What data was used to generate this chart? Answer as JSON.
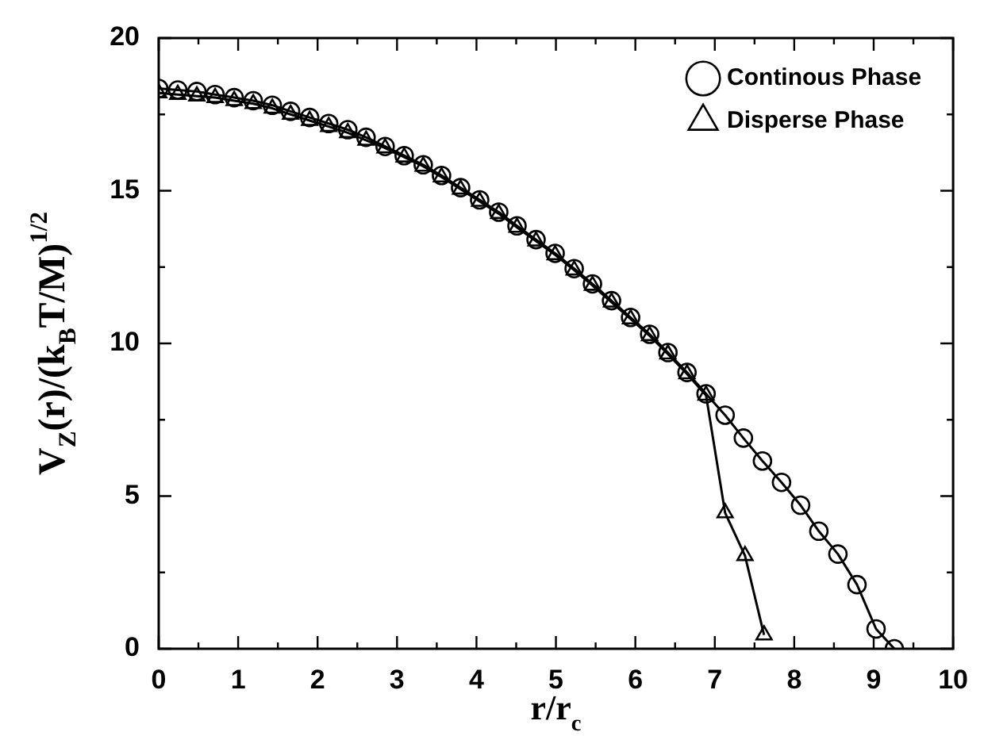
{
  "chart_data": {
    "type": "line",
    "xlabel": "r/r$_{c}$",
    "ylabel": "V$_{Z}$(r)/(k$_{B}$T/M)$^{1/2}$",
    "xlim": [
      0,
      10
    ],
    "ylim": [
      0,
      20
    ],
    "xticks": [
      0,
      {
        "value": 0.5,
        "label": null
      },
      1,
      {
        "value": 1.5,
        "label": null
      },
      2,
      {
        "value": 2.5,
        "label": null
      },
      3,
      {
        "value": 3.5,
        "label": null
      },
      4,
      {
        "value": 4.5,
        "label": null
      },
      5,
      {
        "value": 5.5,
        "label": null
      },
      6,
      {
        "value": 6.5,
        "label": null
      },
      7,
      {
        "value": 7.5,
        "label": null
      },
      8,
      {
        "value": 8.5,
        "label": null
      },
      9,
      {
        "value": 9.5,
        "label": null
      },
      10
    ],
    "yticks": [
      0,
      {
        "value": 2.5,
        "label": null
      },
      5,
      {
        "value": 7.5,
        "label": null
      },
      10,
      {
        "value": 12.5,
        "label": null
      },
      15,
      {
        "value": 17.5,
        "label": null
      },
      20
    ],
    "legend": "top right",
    "grid": false,
    "line_style": "solid",
    "series": [
      {
        "name": "Continous Phase",
        "color": "#000000",
        "marker": "circle",
        "x": [
          0,
          0.24,
          0.48,
          0.71,
          0.95,
          1.19,
          1.43,
          1.66,
          1.9,
          2.14,
          2.38,
          2.61,
          2.85,
          3.09,
          3.33,
          3.56,
          3.8,
          4.04,
          4.28,
          4.51,
          4.75,
          4.99,
          5.23,
          5.46,
          5.7,
          5.94,
          6.18,
          6.41,
          6.65,
          6.89,
          7.13,
          7.36,
          7.6,
          7.84,
          8.08,
          8.31,
          8.55,
          8.79,
          9.03,
          9.26
        ],
        "values": [
          18.35,
          18.3,
          18.25,
          18.15,
          18.05,
          17.95,
          17.8,
          17.6,
          17.4,
          17.2,
          17.0,
          16.75,
          16.45,
          16.15,
          15.85,
          15.5,
          15.1,
          14.7,
          14.3,
          13.85,
          13.4,
          12.95,
          12.45,
          11.95,
          11.4,
          10.85,
          10.3,
          9.7,
          9.05,
          8.35,
          7.65,
          6.9,
          6.15,
          5.45,
          4.7,
          3.85,
          3.1,
          2.1,
          0.65,
          0
        ]
      },
      {
        "name": "Disperse Phase",
        "color": "#000000",
        "marker": "triangle",
        "x": [
          0,
          0.24,
          0.48,
          0.71,
          0.95,
          1.19,
          1.43,
          1.66,
          1.9,
          2.14,
          2.38,
          2.61,
          2.85,
          3.09,
          3.33,
          3.56,
          3.8,
          4.04,
          4.28,
          4.51,
          4.75,
          4.99,
          5.23,
          5.46,
          5.7,
          5.94,
          6.18,
          6.41,
          6.65,
          6.89,
          7.13,
          7.38,
          7.62
        ],
        "values": [
          18.2,
          18.15,
          18.1,
          18.05,
          17.95,
          17.85,
          17.7,
          17.5,
          17.3,
          17.1,
          16.9,
          16.65,
          16.4,
          16.1,
          15.8,
          15.45,
          15.05,
          14.65,
          14.25,
          13.8,
          13.35,
          12.9,
          12.4,
          11.9,
          11.35,
          10.8,
          10.25,
          9.65,
          9.0,
          8.3,
          4.45,
          3.05,
          0.45
        ]
      }
    ]
  }
}
